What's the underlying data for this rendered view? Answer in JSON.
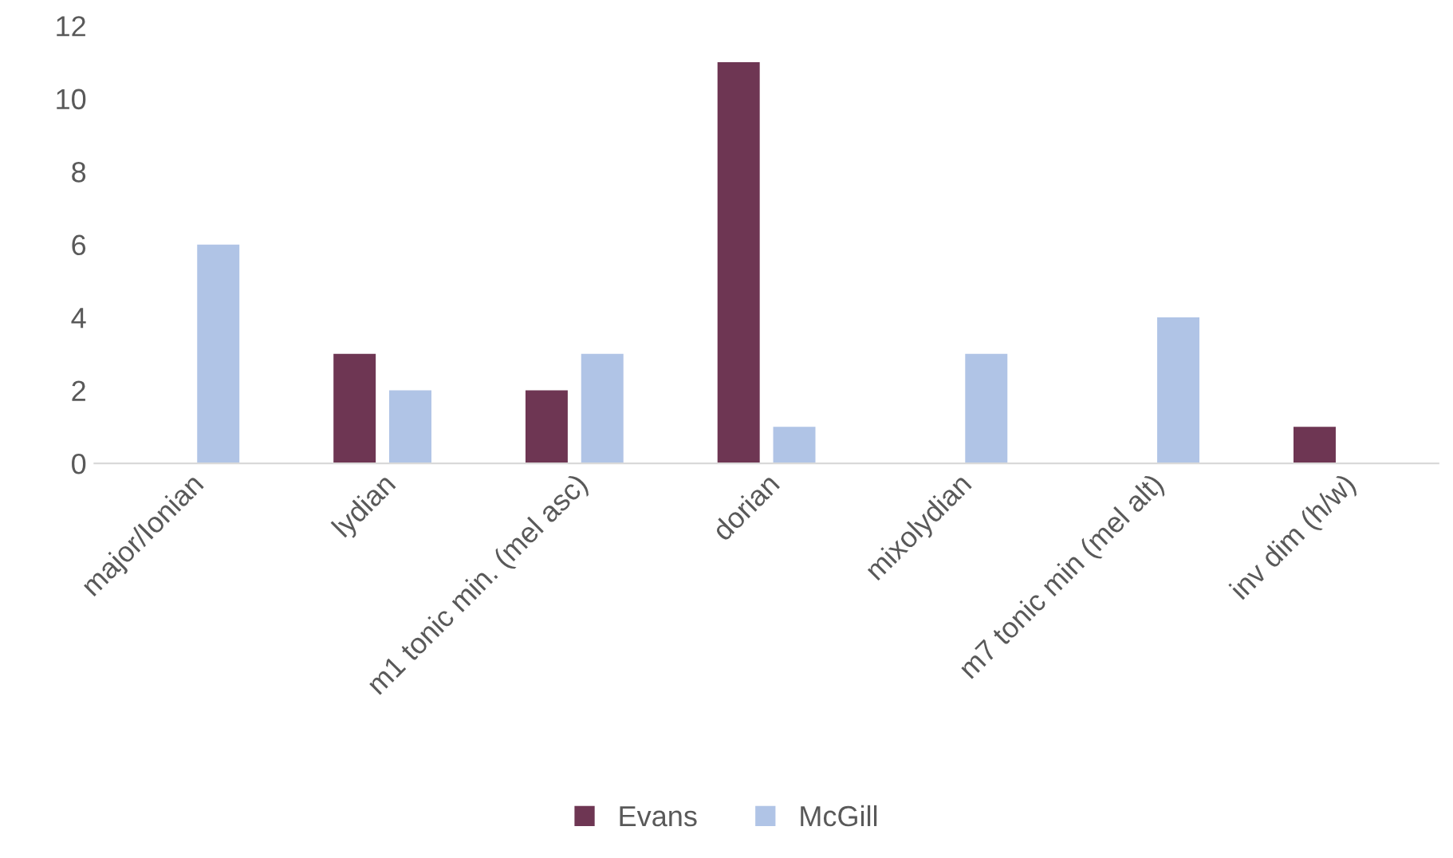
{
  "chart_data": {
    "type": "bar",
    "categories": [
      "major/Ionian",
      "lydian",
      "m1 tonic min. (mel asc)",
      "dorian",
      "mixolydian",
      "m7 tonic min (mel alt)",
      "inv dim (h/w)"
    ],
    "series": [
      {
        "name": "Evans",
        "color": "#6e3653",
        "values": [
          0,
          3,
          2,
          11,
          0,
          0,
          1
        ]
      },
      {
        "name": "McGill",
        "color": "#b0c4e6",
        "values": [
          6,
          2,
          3,
          1,
          3,
          4,
          0
        ]
      }
    ],
    "ylim": [
      0,
      12
    ],
    "yticks": [
      0,
      2,
      4,
      6,
      8,
      10,
      12
    ],
    "grid": false,
    "legend": "bottom"
  }
}
